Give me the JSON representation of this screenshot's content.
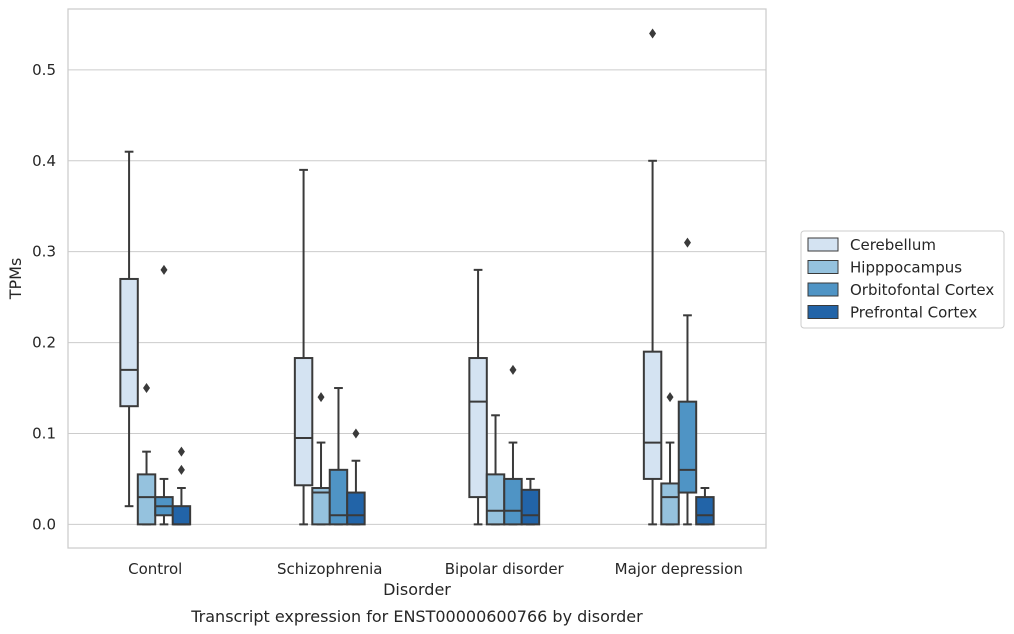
{
  "caption": "Transcript expression for ENST00000600766 by disorder",
  "colors": {
    "Cerebellum": "#d4e3f2",
    "Hipppocampus": "#95c2de",
    "Orbitofontal Cortex": "#4f94c5",
    "Prefrontal Cortex": "#2264a8",
    "line": "#3a3a3a",
    "grid": "#cccccc"
  },
  "chart_data": {
    "type": "box",
    "xlabel": "Disorder",
    "ylabel": "TPMs",
    "ylim": [
      -0.026,
      0.567
    ],
    "yticks": [
      "0.0",
      "0.1",
      "0.2",
      "0.3",
      "0.4",
      "0.5"
    ],
    "grid": true,
    "legend_position": "right",
    "categories": [
      "Control",
      "Schizophrenia",
      "Bipolar disorder",
      "Major depression"
    ],
    "series": [
      {
        "name": "Cerebellum",
        "boxes": [
          {
            "min": 0.02,
            "q1": 0.13,
            "median": 0.17,
            "q3": 0.27,
            "max": 0.41,
            "outliers": []
          },
          {
            "min": 0.0,
            "q1": 0.043,
            "median": 0.095,
            "q3": 0.183,
            "max": 0.39,
            "outliers": []
          },
          {
            "min": 0.0,
            "q1": 0.03,
            "median": 0.135,
            "q3": 0.183,
            "max": 0.28,
            "outliers": []
          },
          {
            "min": 0.0,
            "q1": 0.05,
            "median": 0.09,
            "q3": 0.19,
            "max": 0.4,
            "outliers": [
              0.54
            ]
          }
        ]
      },
      {
        "name": "Hipppocampus",
        "boxes": [
          {
            "min": 0.0,
            "q1": 0.0,
            "median": 0.03,
            "q3": 0.055,
            "max": 0.08,
            "outliers": [
              0.15
            ]
          },
          {
            "min": 0.0,
            "q1": 0.0,
            "median": 0.035,
            "q3": 0.04,
            "max": 0.09,
            "outliers": [
              0.14
            ]
          },
          {
            "min": 0.0,
            "q1": 0.0,
            "median": 0.015,
            "q3": 0.055,
            "max": 0.12,
            "outliers": []
          },
          {
            "min": 0.0,
            "q1": 0.0,
            "median": 0.03,
            "q3": 0.045,
            "max": 0.09,
            "outliers": [
              0.14
            ]
          }
        ]
      },
      {
        "name": "Orbitofontal Cortex",
        "boxes": [
          {
            "min": 0.0,
            "q1": 0.01,
            "median": 0.02,
            "q3": 0.03,
            "max": 0.05,
            "outliers": [
              0.28
            ]
          },
          {
            "min": 0.0,
            "q1": 0.0,
            "median": 0.01,
            "q3": 0.06,
            "max": 0.15,
            "outliers": []
          },
          {
            "min": 0.0,
            "q1": 0.0,
            "median": 0.015,
            "q3": 0.05,
            "max": 0.09,
            "outliers": [
              0.17
            ]
          },
          {
            "min": 0.0,
            "q1": 0.035,
            "median": 0.06,
            "q3": 0.135,
            "max": 0.23,
            "outliers": [
              0.31
            ]
          }
        ]
      },
      {
        "name": "Prefrontal Cortex",
        "boxes": [
          {
            "min": 0.0,
            "q1": 0.0,
            "median": 0.0,
            "q3": 0.02,
            "max": 0.04,
            "outliers": [
              0.06,
              0.08
            ]
          },
          {
            "min": 0.0,
            "q1": 0.0,
            "median": 0.01,
            "q3": 0.035,
            "max": 0.07,
            "outliers": [
              0.1
            ]
          },
          {
            "min": 0.0,
            "q1": 0.0,
            "median": 0.01,
            "q3": 0.038,
            "max": 0.05,
            "outliers": []
          },
          {
            "min": 0.0,
            "q1": 0.0,
            "median": 0.01,
            "q3": 0.03,
            "max": 0.04,
            "outliers": []
          }
        ]
      }
    ]
  }
}
